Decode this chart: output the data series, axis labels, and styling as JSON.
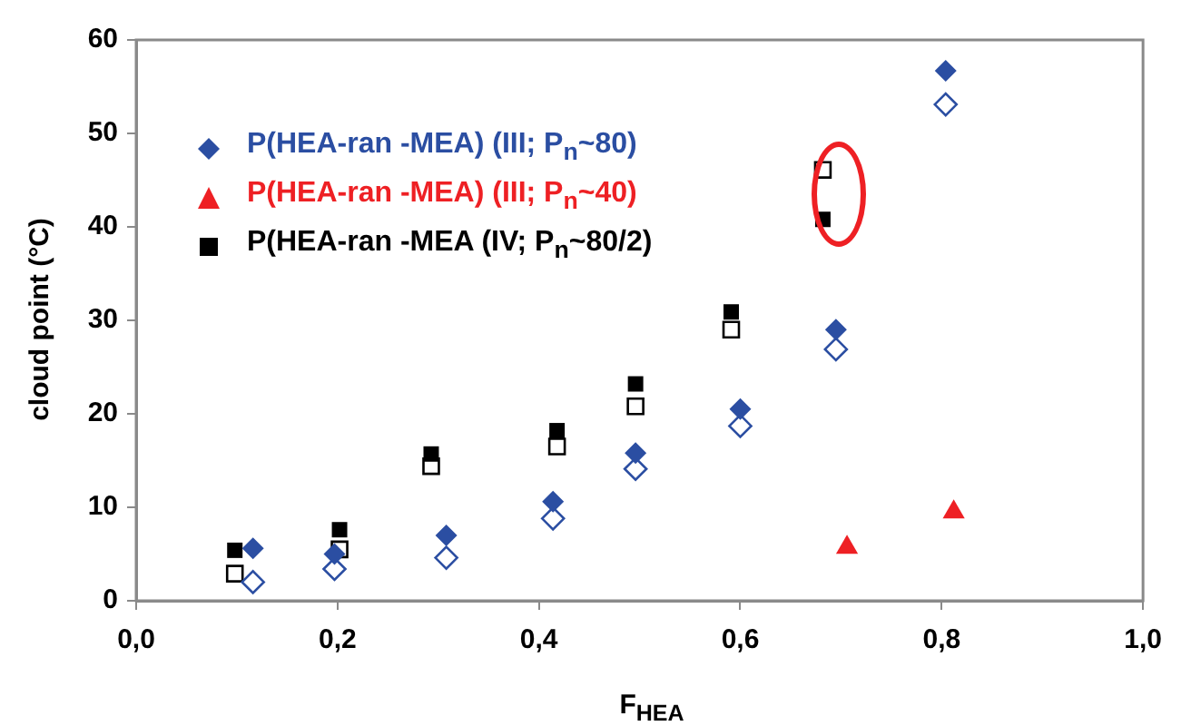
{
  "chart_data": {
    "type": "scatter",
    "xlabel": "F$_{HEA}$",
    "ylabel": "cloud point (°C)",
    "xlim": [
      0,
      1
    ],
    "xticks": [
      {
        "value": 0,
        "label": "0,0"
      },
      {
        "value": 0.2,
        "label": "0,2"
      },
      {
        "value": 0.4,
        "label": "0,4"
      },
      {
        "value": 0.6,
        "label": "0,6"
      },
      {
        "value": 0.8,
        "label": "0,8"
      },
      {
        "value": 1,
        "label": "1,0"
      }
    ],
    "ylim": [
      0,
      60
    ],
    "yticks": [
      0,
      10,
      20,
      30,
      40,
      50,
      60
    ],
    "grid": false,
    "legend": "top left",
    "series": [
      {
        "name": "P(HEA-ran -MEA) (III; P$_{n}$~80)",
        "color": "#2b4ea2",
        "marker": "diamond",
        "x": [
          0.116,
          0.197,
          0.308,
          0.414,
          0.496,
          0.6,
          0.695,
          0.804
        ],
        "values": [
          5.6,
          5.0,
          7.0,
          10.6,
          15.8,
          20.5,
          29.0,
          56.7
        ]
      },
      {
        "color": "#2b4ea2",
        "marker": "diamond",
        "x": [
          0.116,
          0.197,
          0.308,
          0.414,
          0.496,
          0.6,
          0.695,
          0.804
        ],
        "values": [
          2.0,
          3.4,
          4.6,
          8.8,
          14.1,
          18.7,
          26.9,
          53.1
        ]
      },
      {
        "name": "P(HEA-ran -MEA) (III; P$_{n}$~40)",
        "color": "#ee2024",
        "marker": "triangle",
        "x": [
          0.706,
          0.812
        ],
        "values": [
          5.7,
          9.5
        ]
      },
      {
        "name": "P(HEA-ran -MEA (IV; P$_{n}$~80/2)",
        "color": "#000000",
        "marker": "square",
        "x": [
          0.098,
          0.202,
          0.293,
          0.418,
          0.496,
          0.591,
          0.682
        ],
        "values": [
          5.4,
          7.6,
          15.7,
          18.2,
          23.2,
          30.9,
          40.8
        ]
      },
      {
        "color": "#000000",
        "marker": "square",
        "x": [
          0.098,
          0.202,
          0.293,
          0.418,
          0.496,
          0.591,
          0.682
        ],
        "values": [
          2.9,
          5.5,
          14.4,
          16.5,
          20.8,
          29.0,
          46.1
        ]
      }
    ]
  }
}
